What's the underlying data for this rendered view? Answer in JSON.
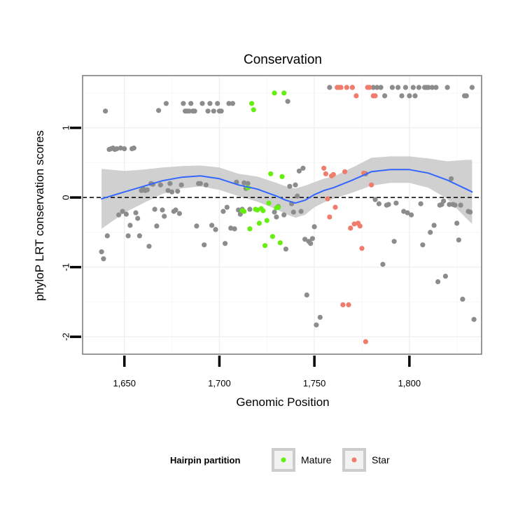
{
  "chart_data": {
    "type": "scatter",
    "title": "Conservation",
    "xlabel": "Genomic Position",
    "ylabel": "phyloP LRT conservation scores",
    "xlim": [
      1628,
      1838
    ],
    "ylim": [
      -2.25,
      1.75
    ],
    "x_ticks": [
      {
        "value": 1650,
        "label": "1,650"
      },
      {
        "value": 1700,
        "label": "1,700"
      },
      {
        "value": 1750,
        "label": "1,750"
      },
      {
        "value": 1800,
        "label": "1,800"
      }
    ],
    "y_ticks": [
      {
        "value": -2,
        "label": "-2"
      },
      {
        "value": -1,
        "label": "-1"
      },
      {
        "value": 0,
        "label": "0"
      },
      {
        "value": 1,
        "label": "1"
      }
    ],
    "reference_line": {
      "y": 0,
      "style": "dashed"
    },
    "grid": true,
    "legend": {
      "title": "Hairpin partition",
      "position": "bottom",
      "entries": [
        {
          "label": "Mature",
          "color": "#66ee11"
        },
        {
          "label": "Star",
          "color": "#f07c6e"
        }
      ]
    },
    "colors": {
      "other": "#8c8c8c",
      "Mature": "#66ee11",
      "Star": "#f07c6e",
      "smooth": "#3366ff",
      "ribbon": "#c8c8c8"
    },
    "series": [
      {
        "partition": "Other",
        "color": "#8c8c8c",
        "points": [
          [
            1638,
            -0.78
          ],
          [
            1639,
            -0.88
          ],
          [
            1640,
            1.24
          ],
          [
            1641,
            -0.55
          ],
          [
            1642,
            0.69
          ],
          [
            1643,
            0.7
          ],
          [
            1644,
            0.71
          ],
          [
            1645,
            0.69
          ],
          [
            1646,
            0.7
          ],
          [
            1647,
            -0.25
          ],
          [
            1648,
            0.71
          ],
          [
            1649,
            -0.2
          ],
          [
            1650,
            0.7
          ],
          [
            1651,
            -0.24
          ],
          [
            1652,
            -0.55
          ],
          [
            1653,
            -0.4
          ],
          [
            1654,
            0.7
          ],
          [
            1655,
            0.71
          ],
          [
            1656,
            -0.22
          ],
          [
            1657,
            -0.3
          ],
          [
            1658,
            -0.55
          ],
          [
            1659,
            0.1
          ],
          [
            1660,
            0.12
          ],
          [
            1661,
            0.1
          ],
          [
            1662,
            0.11
          ],
          [
            1663,
            -0.7
          ],
          [
            1664,
            0.2
          ],
          [
            1665,
            0.19
          ],
          [
            1666,
            -0.17
          ],
          [
            1667,
            -0.41
          ],
          [
            1668,
            1.25
          ],
          [
            1669,
            0.18
          ],
          [
            1670,
            -0.18
          ],
          [
            1671,
            -0.27
          ],
          [
            1672,
            1.35
          ],
          [
            1673,
            0.1
          ],
          [
            1674,
            0.2
          ],
          [
            1675,
            0.08
          ],
          [
            1676,
            -0.2
          ],
          [
            1677,
            -0.18
          ],
          [
            1678,
            0.09
          ],
          [
            1679,
            -0.23
          ],
          [
            1680,
            0.18
          ],
          [
            1681,
            1.35
          ],
          [
            1682,
            1.24
          ],
          [
            1683,
            1.24
          ],
          [
            1684,
            1.24
          ],
          [
            1685,
            1.35
          ],
          [
            1686,
            1.24
          ],
          [
            1687,
            1.24
          ],
          [
            1688,
            -0.41
          ],
          [
            1689,
            0.2
          ],
          [
            1690,
            0.2
          ],
          [
            1691,
            1.35
          ],
          [
            1692,
            -0.68
          ],
          [
            1693,
            0.18
          ],
          [
            1694,
            1.24
          ],
          [
            1695,
            1.35
          ],
          [
            1696,
            -0.4
          ],
          [
            1697,
            1.24
          ],
          [
            1698,
            -0.46
          ],
          [
            1699,
            1.35
          ],
          [
            1700,
            1.24
          ],
          [
            1701,
            1.24
          ],
          [
            1702,
            -0.2
          ],
          [
            1703,
            -0.66
          ],
          [
            1704,
            -0.14
          ],
          [
            1705,
            1.35
          ],
          [
            1706,
            -0.44
          ],
          [
            1707,
            1.35
          ],
          [
            1708,
            -0.45
          ],
          [
            1709,
            0.22
          ],
          [
            1710,
            -0.18
          ],
          [
            1711,
            -0.24
          ],
          [
            1712,
            -0.17
          ],
          [
            1713,
            0.21
          ],
          [
            1714,
            0.13
          ],
          [
            1715,
            0.2
          ],
          [
            1716,
            -0.17
          ],
          [
            1729,
            -0.21
          ],
          [
            1730,
            -0.28
          ],
          [
            1731,
            -0.13
          ],
          [
            1734,
            -0.25
          ],
          [
            1735,
            -0.74
          ],
          [
            1736,
            1.38
          ],
          [
            1737,
            0.16
          ],
          [
            1738,
            -0.09
          ],
          [
            1739,
            -0.21
          ],
          [
            1740,
            0.18
          ],
          [
            1741,
            0.02
          ],
          [
            1742,
            0.38
          ],
          [
            1743,
            -0.2
          ],
          [
            1744,
            0.42
          ],
          [
            1745,
            -0.6
          ],
          [
            1746,
            -1.4
          ],
          [
            1747,
            -0.63
          ],
          [
            1748,
            -0.66
          ],
          [
            1749,
            -0.59
          ],
          [
            1750,
            -0.42
          ],
          [
            1751,
            -1.83
          ],
          [
            1753,
            -1.72
          ],
          [
            1758,
            1.58
          ],
          [
            1770,
            1.58
          ],
          [
            1777,
            0.34
          ],
          [
            1781,
            1.58
          ],
          [
            1782,
            -0.03
          ],
          [
            1783,
            1.58
          ],
          [
            1784,
            -0.09
          ],
          [
            1785,
            1.58
          ],
          [
            1786,
            -0.96
          ],
          [
            1787,
            1.46
          ],
          [
            1788,
            -0.11
          ],
          [
            1789,
            -0.1
          ],
          [
            1791,
            1.58
          ],
          [
            1792,
            -0.63
          ],
          [
            1793,
            -0.08
          ],
          [
            1794,
            1.58
          ],
          [
            1796,
            1.46
          ],
          [
            1797,
            -0.2
          ],
          [
            1798,
            1.58
          ],
          [
            1799,
            -0.22
          ],
          [
            1800,
            1.46
          ],
          [
            1801,
            -0.25
          ],
          [
            1802,
            1.58
          ],
          [
            1803,
            1.46
          ],
          [
            1805,
            1.58
          ],
          [
            1806,
            -0.09
          ],
          [
            1807,
            -0.68
          ],
          [
            1808,
            1.58
          ],
          [
            1809,
            1.58
          ],
          [
            1810,
            1.58
          ],
          [
            1811,
            -0.5
          ],
          [
            1812,
            1.58
          ],
          [
            1813,
            -0.4
          ],
          [
            1814,
            1.58
          ],
          [
            1815,
            -1.21
          ],
          [
            1816,
            -0.11
          ],
          [
            1817,
            -0.1
          ],
          [
            1818,
            -0.05
          ],
          [
            1819,
            -1.13
          ],
          [
            1820,
            1.58
          ],
          [
            1821,
            -0.1
          ],
          [
            1822,
            0.27
          ],
          [
            1823,
            -0.1
          ],
          [
            1824,
            -0.11
          ],
          [
            1825,
            -0.37
          ],
          [
            1826,
            -0.61
          ],
          [
            1827,
            -0.11
          ],
          [
            1828,
            -1.46
          ],
          [
            1829,
            1.46
          ],
          [
            1830,
            1.46
          ],
          [
            1831,
            -0.2
          ],
          [
            1832,
            -0.21
          ],
          [
            1833,
            1.58
          ],
          [
            1834,
            -1.75
          ]
        ]
      },
      {
        "partition": "Mature",
        "color": "#66ee11",
        "points": [
          [
            1712,
            -0.19
          ],
          [
            1713,
            -0.2
          ],
          [
            1715,
            0.14
          ],
          [
            1716,
            -0.45
          ],
          [
            1717,
            1.35
          ],
          [
            1718,
            1.26
          ],
          [
            1719,
            -0.17
          ],
          [
            1720,
            -0.18
          ],
          [
            1721,
            -0.37
          ],
          [
            1722,
            -0.16
          ],
          [
            1723,
            -0.19
          ],
          [
            1724,
            -0.69
          ],
          [
            1725,
            -0.33
          ],
          [
            1726,
            -0.08
          ],
          [
            1727,
            0.34
          ],
          [
            1728,
            -0.56
          ],
          [
            1729,
            1.5
          ],
          [
            1730,
            -0.15
          ],
          [
            1731,
            -0.14
          ],
          [
            1732,
            -0.65
          ],
          [
            1733,
            0.3
          ],
          [
            1734,
            1.5
          ]
        ]
      },
      {
        "partition": "Star",
        "color": "#f07c6e",
        "points": [
          [
            1755,
            0.42
          ],
          [
            1756,
            0.34
          ],
          [
            1757,
            -0.02
          ],
          [
            1758,
            -0.28
          ],
          [
            1759,
            0.31
          ],
          [
            1760,
            0.33
          ],
          [
            1761,
            -0.14
          ],
          [
            1762,
            1.58
          ],
          [
            1763,
            1.58
          ],
          [
            1764,
            1.58
          ],
          [
            1765,
            -1.54
          ],
          [
            1766,
            0.37
          ],
          [
            1767,
            1.58
          ],
          [
            1768,
            -1.54
          ],
          [
            1769,
            -0.44
          ],
          [
            1770,
            1.58
          ],
          [
            1771,
            -0.38
          ],
          [
            1772,
            1.46
          ],
          [
            1773,
            -0.37
          ],
          [
            1774,
            -0.41
          ],
          [
            1775,
            -0.73
          ],
          [
            1776,
            0.35
          ],
          [
            1777,
            -2.07
          ],
          [
            1778,
            1.58
          ],
          [
            1779,
            1.58
          ],
          [
            1780,
            0.18
          ],
          [
            1781,
            1.46
          ],
          [
            1782,
            1.46
          ]
        ]
      }
    ],
    "smooth": {
      "x": [
        1638,
        1650,
        1660,
        1670,
        1680,
        1690,
        1700,
        1710,
        1720,
        1730,
        1735,
        1740,
        1745,
        1750,
        1755,
        1760,
        1770,
        1780,
        1790,
        1800,
        1810,
        1820,
        1830,
        1833
      ],
      "y": [
        -0.02,
        0.08,
        0.16,
        0.24,
        0.29,
        0.31,
        0.27,
        0.18,
        0.12,
        0.02,
        -0.04,
        -0.08,
        -0.04,
        0.04,
        0.1,
        0.14,
        0.25,
        0.37,
        0.4,
        0.4,
        0.35,
        0.25,
        0.12,
        0.08
      ],
      "lower": [
        -0.45,
        -0.22,
        -0.08,
        0.05,
        0.13,
        0.16,
        0.11,
        0.02,
        -0.06,
        -0.17,
        -0.24,
        -0.29,
        -0.25,
        -0.14,
        -0.07,
        -0.02,
        0.07,
        0.17,
        0.21,
        0.21,
        0.14,
        -0.02,
        -0.3,
        -0.38
      ],
      "upper": [
        0.41,
        0.38,
        0.4,
        0.43,
        0.45,
        0.46,
        0.43,
        0.34,
        0.3,
        0.21,
        0.16,
        0.13,
        0.17,
        0.22,
        0.27,
        0.3,
        0.43,
        0.57,
        0.59,
        0.59,
        0.56,
        0.52,
        0.54,
        0.54
      ]
    }
  }
}
